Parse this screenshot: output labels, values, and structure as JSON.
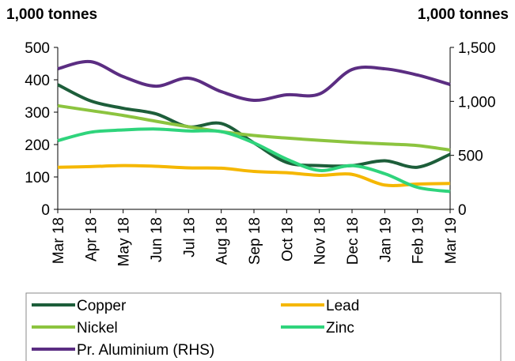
{
  "chart_data": {
    "type": "line",
    "y_label": "1,000 tonnes",
    "y2_label": "1,000 tonnes",
    "categories": [
      "Mar 18",
      "Apr 18",
      "May 18",
      "Jun 18",
      "Jul 18",
      "Aug 18",
      "Sep 18",
      "Oct 18",
      "Nov 18",
      "Dec 18",
      "Jan 19",
      "Feb 19",
      "Mar 19"
    ],
    "series": [
      {
        "name": "Copper",
        "color": "#1d5e3a",
        "values": [
          385,
          335,
          312,
          295,
          255,
          265,
          205,
          145,
          135,
          135,
          150,
          130,
          170
        ]
      },
      {
        "name": "Lead",
        "color": "#f5b700",
        "values": [
          130,
          132,
          135,
          133,
          128,
          127,
          117,
          113,
          105,
          108,
          75,
          78,
          80
        ]
      },
      {
        "name": "Nickel",
        "color": "#8cc43f",
        "values": [
          320,
          305,
          290,
          272,
          255,
          240,
          228,
          220,
          213,
          207,
          202,
          197,
          183
        ]
      },
      {
        "name": "Zinc",
        "color": "#2fd47c",
        "values": [
          212,
          238,
          245,
          248,
          242,
          240,
          205,
          155,
          120,
          135,
          110,
          68,
          55
        ]
      },
      {
        "name": "Pr. Aluminium (RHS)",
        "color": "#5b2d82",
        "axis": "y2",
        "values": [
          1302,
          1368,
          1229,
          1141,
          1215,
          1090,
          1010,
          1061,
          1068,
          1295,
          1302,
          1244,
          1156
        ]
      }
    ],
    "ylim": [
      0,
      500
    ],
    "yticks": [
      0,
      100,
      200,
      300,
      400,
      500
    ],
    "y2lim": [
      0,
      1500
    ],
    "y2ticks": [
      0,
      500,
      {
        "value": 1000,
        "label": "1,000"
      },
      {
        "value": 1500,
        "label": "1,500"
      }
    ],
    "legend": "bottom"
  }
}
